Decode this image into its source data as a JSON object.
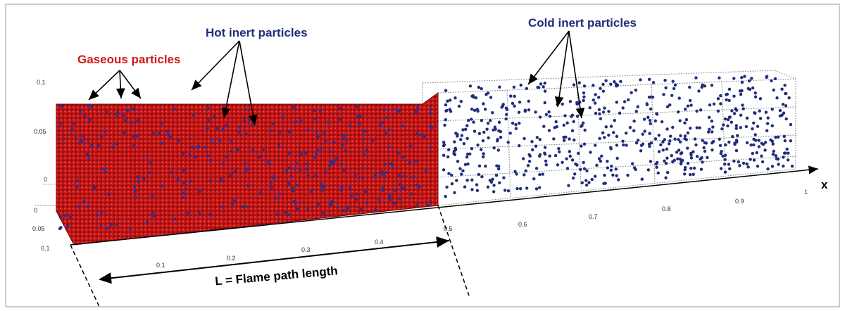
{
  "labels": {
    "gaseous": "Gaseous particles",
    "hot": "Hot inert particles",
    "cold": "Cold inert particles",
    "length": "L = Flame path length",
    "axis": "x"
  },
  "x_axis": {
    "ticks": [
      "0.1",
      "0.2",
      "0.3",
      "0.4",
      "0.5",
      "0.6",
      "0.7",
      "0.8",
      "0.9",
      "1"
    ]
  },
  "side_axis": {
    "ticks": [
      "0.1",
      "0.05",
      "0",
      "0",
      "0.05",
      "0.1"
    ]
  }
}
